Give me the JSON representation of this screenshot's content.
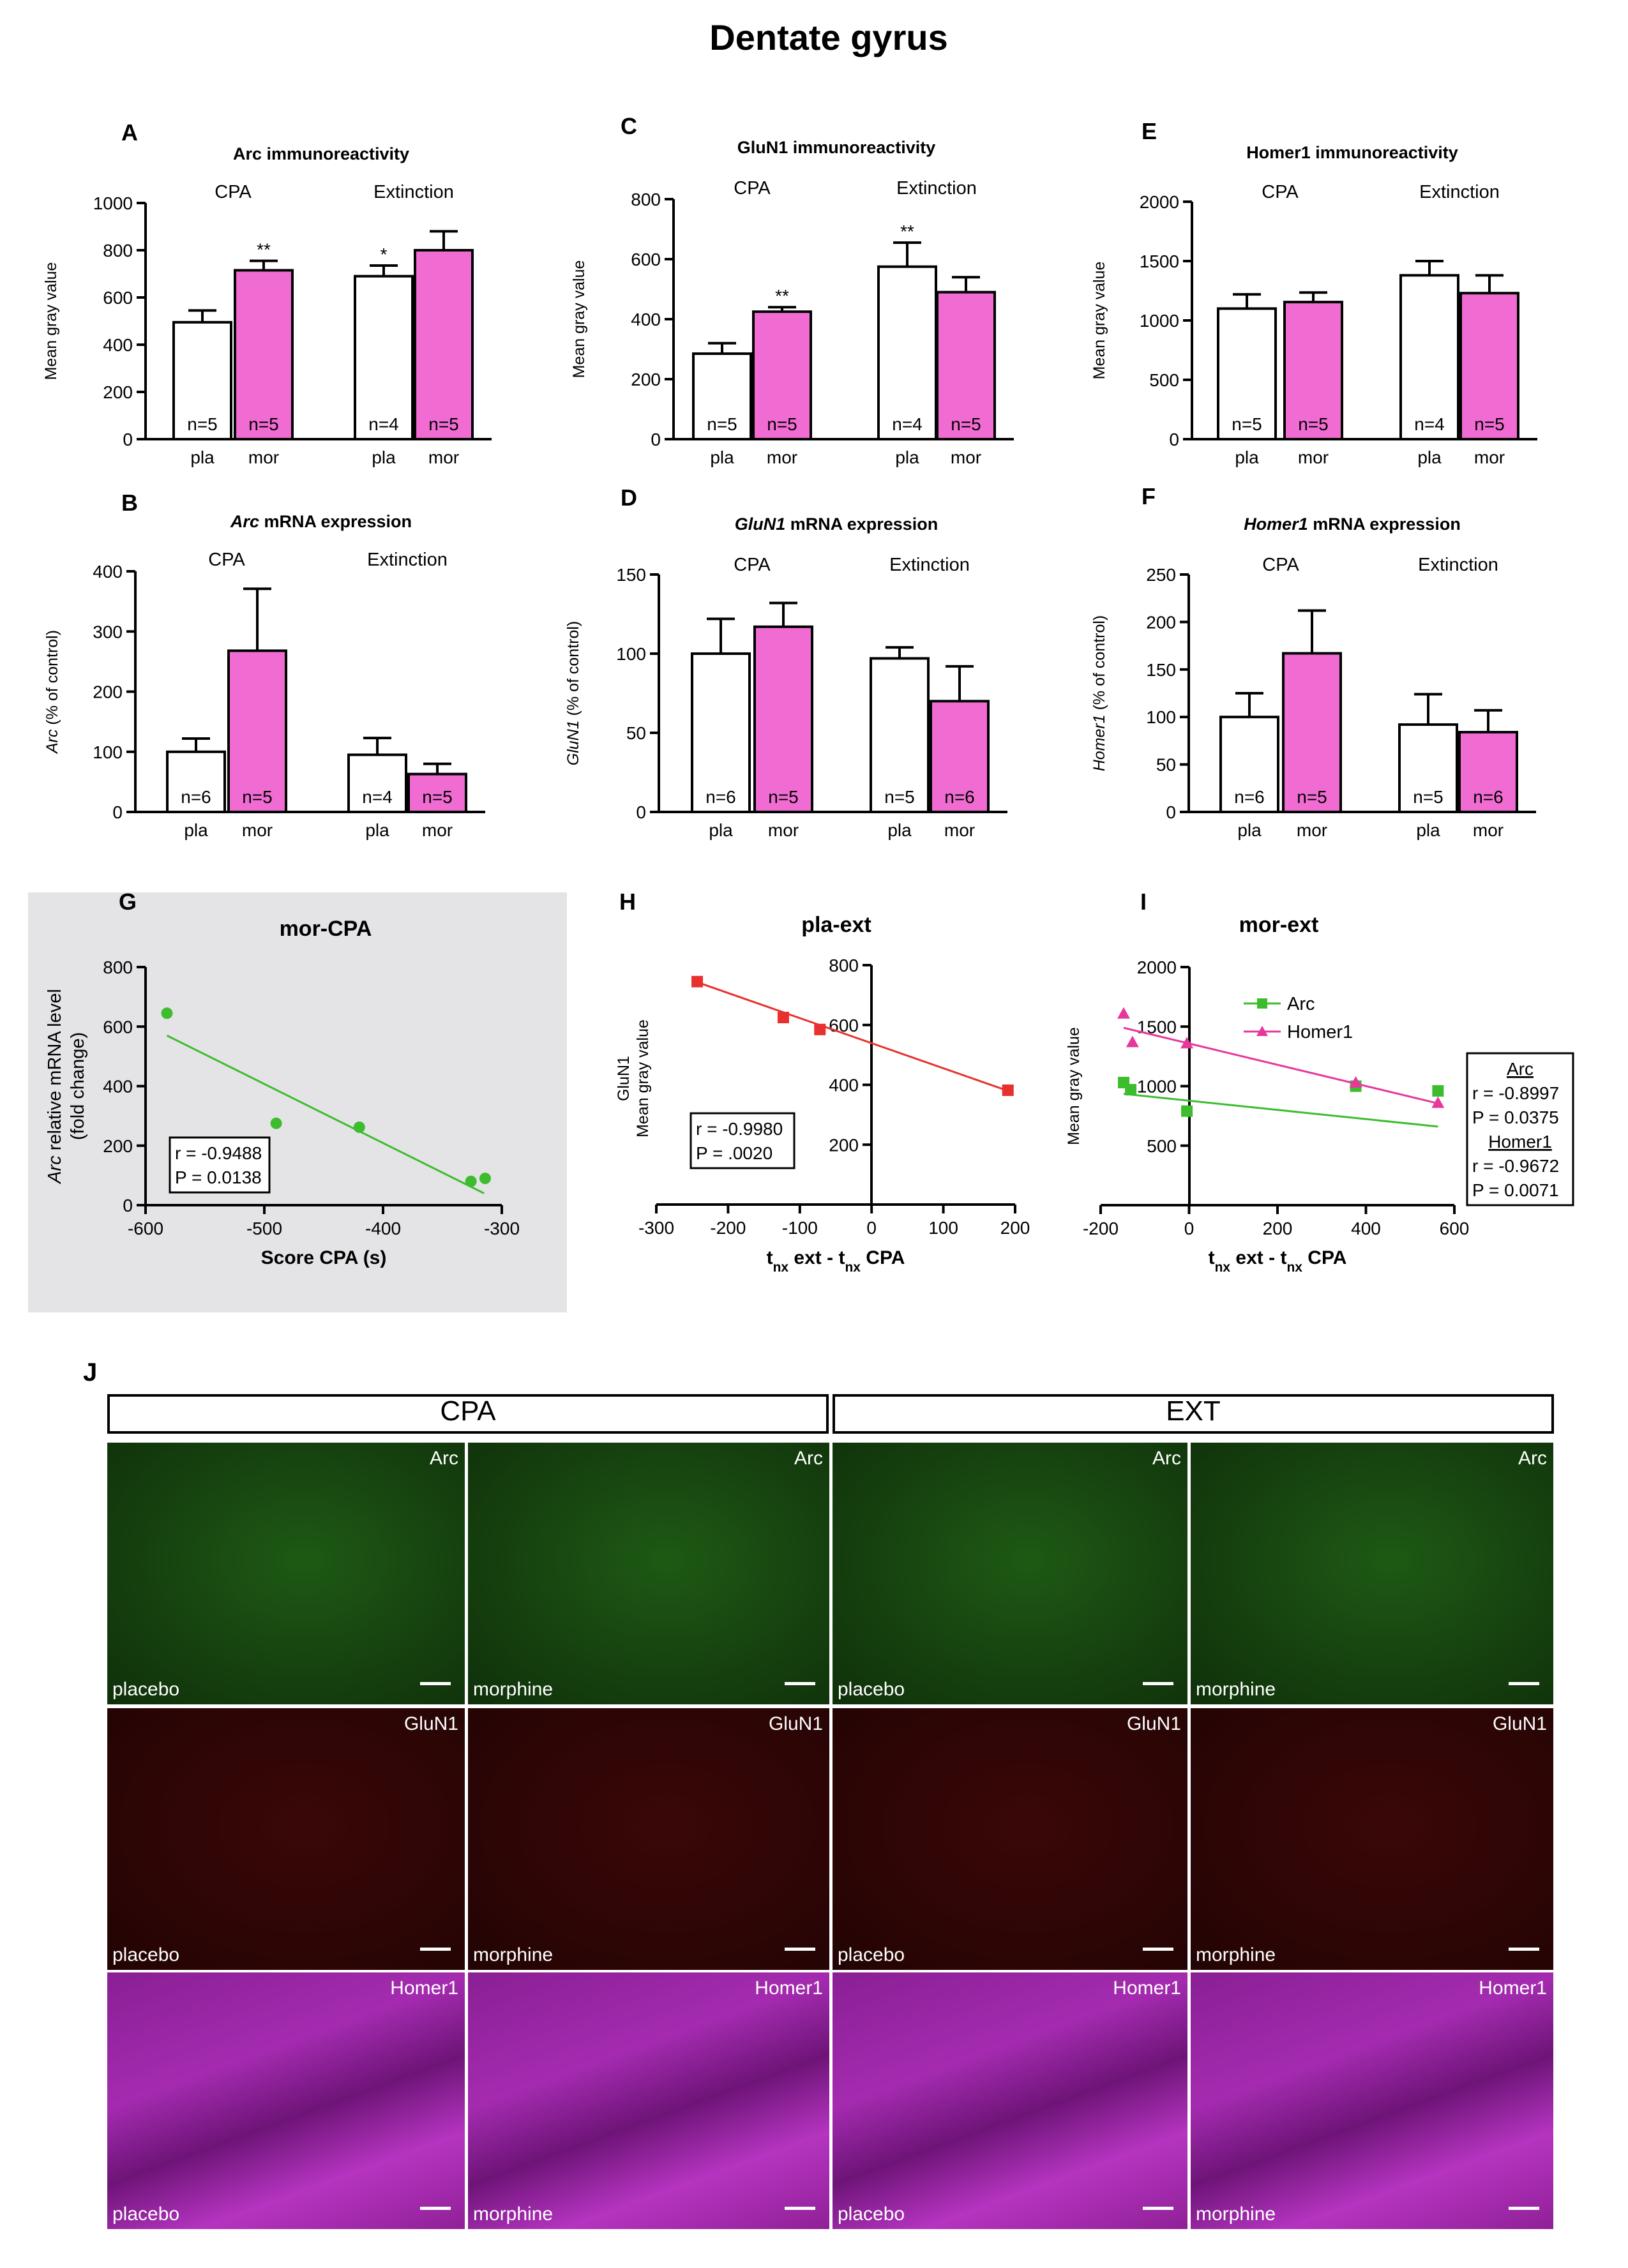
{
  "figure_title": "Dentate gyrus",
  "colors": {
    "placebo_fill": "#ffffff",
    "morphine_fill": "#f06cd2",
    "arc_green": "#3dbd2e",
    "homer_pink": "#e8379c",
    "pla_ext_red": "#e8302e",
    "panel_g_bg": "#e4e4e6"
  },
  "chart_data": [
    {
      "id": "A",
      "type": "bar",
      "letter": "A",
      "title": "Arc immunoreactivity",
      "title_html_italic_part": "",
      "ylabel": "Mean gray value",
      "ylim": [
        0,
        1000
      ],
      "yticks": [
        0,
        200,
        400,
        600,
        800,
        1000
      ],
      "groups": [
        "CPA",
        "Extinction"
      ],
      "categories": [
        "pla",
        "mor",
        "pla",
        "mor"
      ],
      "values": [
        495,
        715,
        690,
        800
      ],
      "errors": [
        50,
        40,
        45,
        80
      ],
      "n_labels": [
        "n=5",
        "n=5",
        "n=4",
        "n=5"
      ],
      "significance": [
        "",
        "**",
        "*",
        ""
      ]
    },
    {
      "id": "C",
      "type": "bar",
      "letter": "C",
      "title": "GluN1 immunoreactivity",
      "ylabel": "Mean gray value",
      "ylim": [
        0,
        800
      ],
      "yticks": [
        0,
        200,
        400,
        600,
        800
      ],
      "groups": [
        "CPA",
        "Extinction"
      ],
      "categories": [
        "pla",
        "mor",
        "pla",
        "mor"
      ],
      "values": [
        285,
        425,
        575,
        490
      ],
      "errors": [
        35,
        15,
        80,
        50
      ],
      "n_labels": [
        "n=5",
        "n=5",
        "n=4",
        "n=5"
      ],
      "significance": [
        "",
        "**",
        "**",
        ""
      ]
    },
    {
      "id": "E",
      "type": "bar",
      "letter": "E",
      "title": "Homer1 immunoreactivity",
      "ylabel": "Mean gray value",
      "ylim": [
        0,
        2000
      ],
      "yticks": [
        0,
        500,
        1000,
        1500,
        2000
      ],
      "groups": [
        "CPA",
        "Extinction"
      ],
      "categories": [
        "pla",
        "mor",
        "pla",
        "mor"
      ],
      "values": [
        1100,
        1155,
        1380,
        1230
      ],
      "errors": [
        120,
        80,
        120,
        150
      ],
      "n_labels": [
        "n=5",
        "n=5",
        "n=4",
        "n=5"
      ],
      "significance": [
        "",
        "",
        "",
        ""
      ]
    },
    {
      "id": "B",
      "type": "bar",
      "letter": "B",
      "title_italic": "Arc",
      "title": " mRNA expression",
      "ylabel_italic": "Arc",
      "ylabel": " (% of control)",
      "ylim": [
        0,
        400
      ],
      "yticks": [
        0,
        100,
        200,
        300,
        400
      ],
      "groups": [
        "CPA",
        "Extinction"
      ],
      "categories": [
        "pla",
        "mor",
        "pla",
        "mor"
      ],
      "values": [
        100,
        268,
        95,
        63
      ],
      "errors": [
        22,
        103,
        28,
        17
      ],
      "n_labels": [
        "n=6",
        "n=5",
        "n=4",
        "n=5"
      ],
      "significance": [
        "",
        "",
        "",
        ""
      ]
    },
    {
      "id": "D",
      "type": "bar",
      "letter": "D",
      "title_italic": "GluN1",
      "title": " mRNA expression",
      "ylabel_italic": "GluN1",
      "ylabel": " (% of control)",
      "ylim": [
        0,
        150
      ],
      "yticks": [
        0,
        50,
        100,
        150
      ],
      "groups": [
        "CPA",
        "Extinction"
      ],
      "categories": [
        "pla",
        "mor",
        "pla",
        "mor"
      ],
      "values": [
        100,
        117,
        97,
        70
      ],
      "errors": [
        22,
        15,
        7,
        22
      ],
      "n_labels": [
        "n=6",
        "n=5",
        "n=5",
        "n=6"
      ],
      "significance": [
        "",
        "",
        "",
        ""
      ]
    },
    {
      "id": "F",
      "type": "bar",
      "letter": "F",
      "title_italic": "Homer1",
      "title": " mRNA expression",
      "ylabel_italic": "Homer1",
      "ylabel": " (% of control)",
      "ylim": [
        0,
        250
      ],
      "yticks": [
        0,
        50,
        100,
        150,
        200,
        250
      ],
      "groups": [
        "CPA",
        "Extinction"
      ],
      "categories": [
        "pla",
        "mor",
        "pla",
        "mor"
      ],
      "values": [
        100,
        167,
        92,
        84
      ],
      "errors": [
        25,
        45,
        32,
        23
      ],
      "n_labels": [
        "n=6",
        "n=5",
        "n=5",
        "n=6"
      ],
      "significance": [
        "",
        "",
        "",
        ""
      ]
    },
    {
      "id": "G",
      "type": "scatter",
      "letter": "G",
      "title": "mor-CPA",
      "xlabel": "Score CPA (s)",
      "ylabel_italic": "Arc",
      "ylabel": " relative mRNA level",
      "ylabel2": "(fold change)",
      "xlim": [
        -600,
        -300
      ],
      "ylim": [
        0,
        800
      ],
      "xticks": [
        -600,
        -500,
        -400,
        -300
      ],
      "yticks": [
        0,
        200,
        400,
        600,
        800
      ],
      "points": [
        [
          -582,
          645
        ],
        [
          -490,
          275
        ],
        [
          -420,
          262
        ],
        [
          -326,
          80
        ],
        [
          -314,
          90
        ]
      ],
      "fit": [
        [
          -582,
          570
        ],
        [
          -315,
          40
        ]
      ],
      "stats": [
        "r = -0.9488",
        "P = 0.0138"
      ]
    },
    {
      "id": "H",
      "type": "scatter",
      "letter": "H",
      "title": "pla-ext",
      "xlabel_parts": [
        "t",
        "nx",
        " ext - t",
        "nx",
        " CPA"
      ],
      "ylabel": "GluN1",
      "ylabel2": "Mean gray value",
      "xlim": [
        -300,
        200
      ],
      "ylim": [
        0,
        800
      ],
      "xticks": [
        -300,
        -200,
        -100,
        0,
        100,
        200
      ],
      "yticks": [
        200,
        400,
        600,
        800
      ],
      "points": [
        [
          -243,
          745
        ],
        [
          -123,
          625
        ],
        [
          -72,
          585
        ],
        [
          190,
          382
        ]
      ],
      "fit": [
        [
          -243,
          743
        ],
        [
          190,
          380
        ]
      ],
      "stats": [
        "r = -0.9980",
        "P = .0020"
      ]
    },
    {
      "id": "I",
      "type": "scatter",
      "letter": "I",
      "title": "mor-ext",
      "xlabel_parts": [
        "t",
        "nx",
        " ext - t",
        "nx",
        " CPA"
      ],
      "ylabel": "Mean gray value",
      "xlim": [
        -200,
        600
      ],
      "ylim": [
        0,
        2000
      ],
      "xticks": [
        -200,
        0,
        200,
        400,
        600
      ],
      "yticks": [
        500,
        1000,
        1500,
        2000
      ],
      "series": [
        {
          "name": "Arc",
          "points": [
            [
              -148,
              1030
            ],
            [
              -132,
              970
            ],
            [
              -5,
              790
            ],
            [
              377,
              1000
            ],
            [
              563,
              960
            ]
          ],
          "fit": [
            [
              -148,
              935
            ],
            [
              563,
              660
            ]
          ]
        },
        {
          "name": "Homer1",
          "points": [
            [
              -148,
              1610
            ],
            [
              -128,
              1370
            ],
            [
              -5,
              1360
            ],
            [
              377,
              1030
            ],
            [
              563,
              860
            ]
          ],
          "fit": [
            [
              -148,
              1490
            ],
            [
              563,
              855
            ]
          ]
        }
      ],
      "stats": [
        {
          "label": "Arc",
          "underline": true
        },
        {
          "label": "r = -0.8997"
        },
        {
          "label": "P = 0.0375"
        },
        {
          "label": "Homer1",
          "underline": true
        },
        {
          "label": "r = -0.9672"
        },
        {
          "label": "P = 0.0071"
        }
      ]
    }
  ],
  "panel_j": {
    "letter": "J",
    "headers": [
      "CPA",
      "EXT"
    ],
    "rows": [
      {
        "marker": "Arc",
        "tiles": [
          "placebo",
          "morphine",
          "placebo",
          "morphine"
        ]
      },
      {
        "marker": "GluN1",
        "tiles": [
          "placebo",
          "morphine",
          "placebo",
          "morphine"
        ]
      },
      {
        "marker": "Homer1",
        "tiles": [
          "placebo",
          "morphine",
          "placebo",
          "morphine"
        ]
      }
    ]
  }
}
